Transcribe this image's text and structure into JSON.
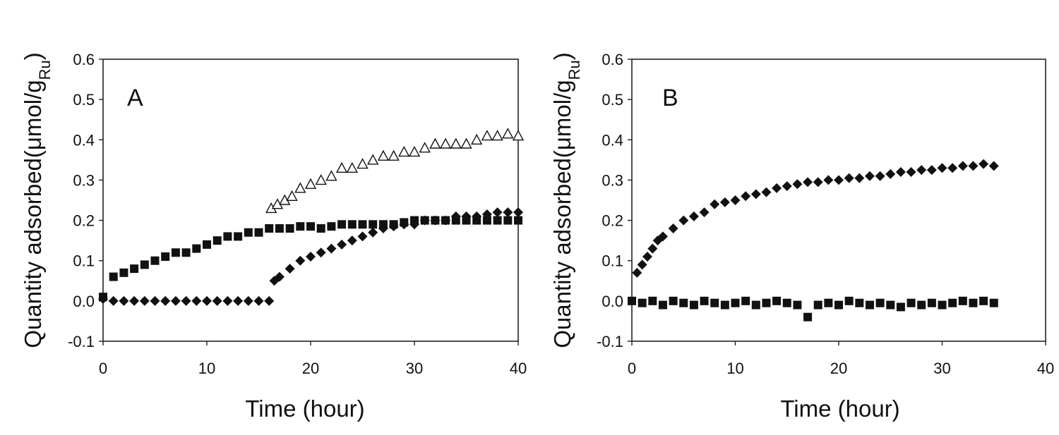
{
  "chart_data": [
    {
      "type": "scatter",
      "panel_label": "A",
      "xlabel": "Time (hour)",
      "ylabel": "Quantity adsorbed(μmol/g",
      "ylabel_sub": "Ru",
      "ylabel_close": ")",
      "xlim": [
        0,
        40
      ],
      "ylim": [
        -0.1,
        0.6
      ],
      "xticks": [
        "0",
        "10",
        "20",
        "30",
        "40"
      ],
      "yticks": [
        "-0.1",
        "0.0",
        "0.1",
        "0.2",
        "0.3",
        "0.4",
        "0.5",
        "0.6"
      ],
      "grid": false,
      "series": [
        {
          "marker": "square",
          "x": [
            0,
            1,
            2,
            3,
            4,
            5,
            6,
            7,
            8,
            9,
            10,
            11,
            12,
            13,
            14,
            15,
            16,
            17,
            18,
            19,
            20,
            21,
            22,
            23,
            24,
            25,
            26,
            27,
            28,
            29,
            30,
            31,
            32,
            33,
            34,
            35,
            36,
            37,
            38,
            39,
            40
          ],
          "y": [
            0.01,
            0.06,
            0.07,
            0.08,
            0.09,
            0.1,
            0.11,
            0.12,
            0.12,
            0.13,
            0.14,
            0.15,
            0.16,
            0.16,
            0.17,
            0.17,
            0.18,
            0.18,
            0.18,
            0.185,
            0.185,
            0.18,
            0.185,
            0.19,
            0.19,
            0.19,
            0.19,
            0.19,
            0.19,
            0.195,
            0.2,
            0.2,
            0.2,
            0.2,
            0.2,
            0.2,
            0.2,
            0.2,
            0.2,
            0.2,
            0.2
          ]
        },
        {
          "marker": "triangle-open",
          "x": [
            16.2,
            16.8,
            17.5,
            18.2,
            19,
            20,
            21,
            22,
            23,
            24,
            25,
            26,
            27,
            28,
            29,
            30,
            31,
            32,
            33,
            34,
            35,
            36,
            37,
            38,
            39,
            40
          ],
          "y": [
            0.23,
            0.24,
            0.25,
            0.26,
            0.28,
            0.29,
            0.3,
            0.31,
            0.33,
            0.33,
            0.34,
            0.35,
            0.36,
            0.36,
            0.37,
            0.37,
            0.38,
            0.39,
            0.39,
            0.39,
            0.39,
            0.4,
            0.41,
            0.41,
            0.415,
            0.41
          ]
        },
        {
          "marker": "diamond",
          "x": [
            0,
            1,
            2,
            3,
            4,
            5,
            6,
            7,
            8,
            9,
            10,
            11,
            12,
            13,
            14,
            15,
            16,
            16.5,
            17,
            18,
            19,
            20,
            21,
            22,
            23,
            24,
            25,
            26,
            27,
            28,
            29,
            30,
            31,
            32,
            33,
            34,
            35,
            36,
            37,
            38,
            39,
            40
          ],
          "y": [
            0.005,
            0.0,
            0.0,
            0.0,
            0.0,
            0.0,
            0.0,
            0.0,
            0.0,
            0.0,
            0.0,
            0.0,
            0.0,
            0.0,
            0.0,
            0.0,
            0.0,
            0.05,
            0.06,
            0.08,
            0.1,
            0.11,
            0.12,
            0.13,
            0.14,
            0.15,
            0.16,
            0.17,
            0.18,
            0.185,
            0.19,
            0.19,
            0.2,
            0.2,
            0.2,
            0.21,
            0.21,
            0.21,
            0.215,
            0.22,
            0.22,
            0.22
          ]
        }
      ]
    },
    {
      "type": "scatter",
      "panel_label": "B",
      "xlabel": "Time (hour)",
      "ylabel": "Quantity adsorbed(μmol/g",
      "ylabel_sub": "Ru",
      "ylabel_close": ")",
      "xlim": [
        0,
        40
      ],
      "ylim": [
        -0.1,
        0.6
      ],
      "xticks": [
        "0",
        "10",
        "20",
        "30",
        "40"
      ],
      "yticks": [
        "-0.1",
        "0.0",
        "0.1",
        "0.2",
        "0.3",
        "0.4",
        "0.5",
        "0.6"
      ],
      "grid": false,
      "series": [
        {
          "marker": "diamond",
          "x": [
            0.5,
            1,
            1.5,
            2,
            2.5,
            3,
            4,
            5,
            6,
            7,
            8,
            9,
            10,
            11,
            12,
            13,
            14,
            15,
            16,
            17,
            18,
            19,
            20,
            21,
            22,
            23,
            24,
            25,
            26,
            27,
            28,
            29,
            30,
            31,
            32,
            33,
            34,
            35
          ],
          "y": [
            0.07,
            0.09,
            0.11,
            0.13,
            0.15,
            0.16,
            0.18,
            0.2,
            0.21,
            0.22,
            0.24,
            0.245,
            0.25,
            0.26,
            0.265,
            0.27,
            0.28,
            0.285,
            0.29,
            0.295,
            0.295,
            0.3,
            0.3,
            0.305,
            0.305,
            0.31,
            0.31,
            0.315,
            0.32,
            0.32,
            0.325,
            0.325,
            0.33,
            0.33,
            0.335,
            0.335,
            0.34,
            0.335
          ]
        },
        {
          "marker": "square",
          "x": [
            0,
            1,
            2,
            3,
            4,
            5,
            6,
            7,
            8,
            9,
            10,
            11,
            12,
            13,
            14,
            15,
            16,
            17,
            18,
            19,
            20,
            21,
            22,
            23,
            24,
            25,
            26,
            27,
            28,
            29,
            30,
            31,
            32,
            33,
            34,
            35
          ],
          "y": [
            0.0,
            -0.005,
            0.0,
            -0.01,
            0.0,
            -0.005,
            -0.01,
            0.0,
            -0.005,
            -0.01,
            -0.005,
            0.0,
            -0.01,
            -0.005,
            0.0,
            -0.005,
            -0.01,
            -0.04,
            -0.01,
            -0.005,
            -0.01,
            0.0,
            -0.005,
            -0.01,
            -0.005,
            -0.01,
            -0.015,
            -0.005,
            -0.01,
            -0.005,
            -0.01,
            -0.005,
            0.0,
            -0.005,
            0.0,
            -0.005
          ]
        }
      ]
    }
  ]
}
